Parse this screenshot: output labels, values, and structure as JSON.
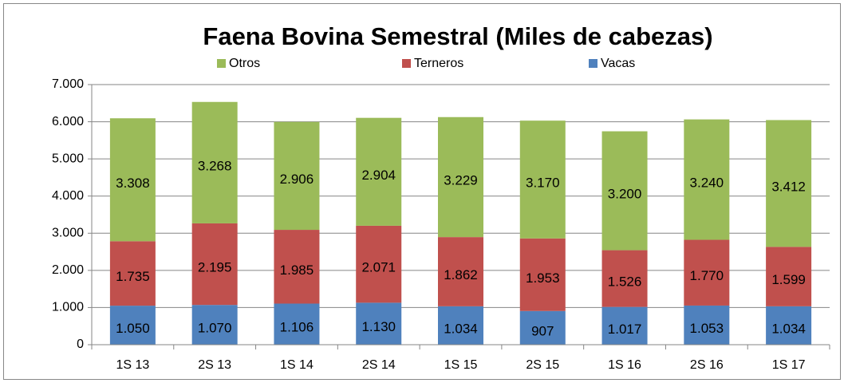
{
  "chart_data": {
    "type": "bar",
    "stacked": true,
    "title": "Faena Bovina Semestral (Miles de cabezas)",
    "categories": [
      "1S 13",
      "2S 13",
      "1S 14",
      "2S 14",
      "1S 15",
      "2S 15",
      "1S 16",
      "2S 16",
      "1S 17"
    ],
    "series": [
      {
        "name": "Vacas",
        "color": "#4f81bd",
        "values": [
          1050,
          1070,
          1106,
          1130,
          1034,
          907,
          1017,
          1053,
          1034
        ],
        "value_labels": [
          "1.050",
          "1.070",
          "1.106",
          "1.130",
          "1.034",
          "907",
          "1.017",
          "1.053",
          "1.034"
        ]
      },
      {
        "name": "Terneros",
        "color": "#c0504d",
        "values": [
          1735,
          2195,
          1985,
          2071,
          1862,
          1953,
          1526,
          1770,
          1599
        ],
        "value_labels": [
          "1.735",
          "2.195",
          "1.985",
          "2.071",
          "1.862",
          "1.953",
          "1.526",
          "1.770",
          "1.599"
        ]
      },
      {
        "name": "Otros",
        "color": "#9bbb59",
        "values": [
          3308,
          3268,
          2906,
          2904,
          3229,
          3170,
          3200,
          3240,
          3412
        ],
        "value_labels": [
          "3.308",
          "3.268",
          "2.906",
          "2.904",
          "3.229",
          "3.170",
          "3.200",
          "3.240",
          "3.412"
        ]
      }
    ],
    "ylim": [
      0,
      7000
    ],
    "yticks": [
      0,
      {
        "value": 1000,
        "label": "1.000"
      },
      {
        "value": 2000,
        "label": "2.000"
      },
      {
        "value": 3000,
        "label": "3.000"
      },
      {
        "value": 4000,
        "label": "4.000"
      },
      {
        "value": 5000,
        "label": "5.000"
      },
      {
        "value": 6000,
        "label": "6.000"
      },
      {
        "value": 7000,
        "label": "7.000"
      }
    ],
    "grid": true,
    "legend": "top"
  }
}
